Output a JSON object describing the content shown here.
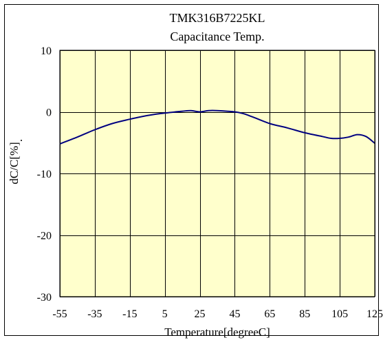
{
  "chart_data": {
    "type": "line",
    "title": "TMK316B7225KL",
    "subtitle": "Capacitance Temp.",
    "xlabel": "Temperature[degreeC]",
    "ylabel": "dC/C[%]",
    "ylabel_suffix": ".",
    "xlim": [
      -55,
      125
    ],
    "ylim": [
      -30,
      10
    ],
    "x_ticks": [
      -55,
      -35,
      -15,
      5,
      25,
      45,
      65,
      85,
      105,
      125
    ],
    "y_ticks": [
      10,
      0,
      -10,
      -20,
      -30
    ],
    "grid": true,
    "legend": "none",
    "colors": {
      "plot_background": "#FFFFCC",
      "line": "#000080",
      "grid": "#000000"
    },
    "series": [
      {
        "x": [
          -55,
          -45,
          -35,
          -25,
          -15,
          -5,
          5,
          15,
          20,
          25,
          30,
          35,
          45,
          50,
          55,
          65,
          75,
          85,
          95,
          100,
          105,
          110,
          115,
          120,
          125
        ],
        "y": [
          -5.2,
          -4.1,
          -2.9,
          -1.9,
          -1.2,
          -0.6,
          -0.2,
          0.1,
          0.2,
          0.0,
          0.2,
          0.2,
          0.0,
          -0.3,
          -0.8,
          -1.9,
          -2.6,
          -3.4,
          -4.0,
          -4.3,
          -4.3,
          -4.1,
          -3.7,
          -4.0,
          -5.1
        ]
      }
    ]
  }
}
